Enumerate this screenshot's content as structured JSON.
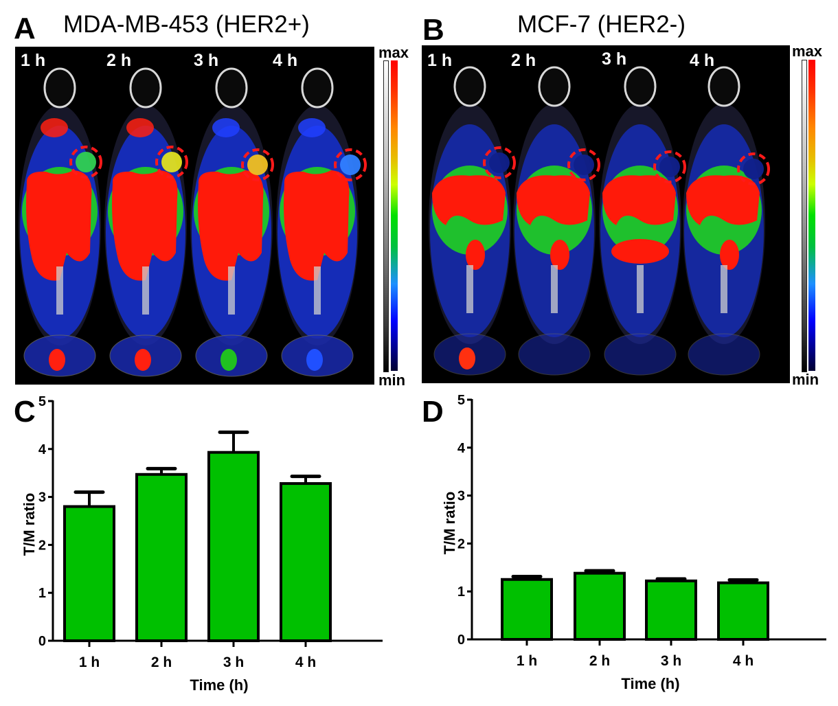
{
  "figure": {
    "panels": {
      "A": {
        "letter": "A",
        "title": "MDA-MB-453 (HER2+)",
        "time_labels": [
          "1 h",
          "2 h",
          "3 h",
          "4 h"
        ],
        "colorbar": {
          "max_label": "max",
          "min_label": "min"
        }
      },
      "B": {
        "letter": "B",
        "title": "MCF-7 (HER2-)",
        "time_labels": [
          "1 h",
          "2 h",
          "3 h",
          "4 h"
        ],
        "colorbar": {
          "max_label": "max",
          "min_label": "min"
        }
      },
      "C": {
        "letter": "C"
      },
      "D": {
        "letter": "D"
      }
    },
    "colors": {
      "bar_fill": "#00c000",
      "bar_stroke": "#000000",
      "tumor_circle": "#ff1a1a",
      "hot": "#ff0000"
    }
  },
  "chart_data": [
    {
      "panel": "C",
      "type": "bar",
      "title": "",
      "xlabel": "Time (h)",
      "ylabel": "T/M ratio",
      "categories": [
        "1 h",
        "2 h",
        "3 h",
        "4 h"
      ],
      "values": [
        2.8,
        3.47,
        3.93,
        3.28
      ],
      "errors": [
        0.3,
        0.12,
        0.42,
        0.15
      ],
      "ylim": [
        0,
        5
      ],
      "yticks": [
        0,
        1,
        2,
        3,
        4,
        5
      ],
      "grid": false
    },
    {
      "panel": "D",
      "type": "bar",
      "title": "",
      "xlabel": "Time (h)",
      "ylabel": "T/M ratio",
      "categories": [
        "1 h",
        "2 h",
        "3 h",
        "4 h"
      ],
      "values": [
        1.25,
        1.38,
        1.22,
        1.18
      ],
      "errors": [
        0.06,
        0.05,
        0.04,
        0.06
      ],
      "ylim": [
        0,
        5
      ],
      "yticks": [
        0,
        1,
        2,
        3,
        4,
        5
      ],
      "grid": false
    }
  ]
}
